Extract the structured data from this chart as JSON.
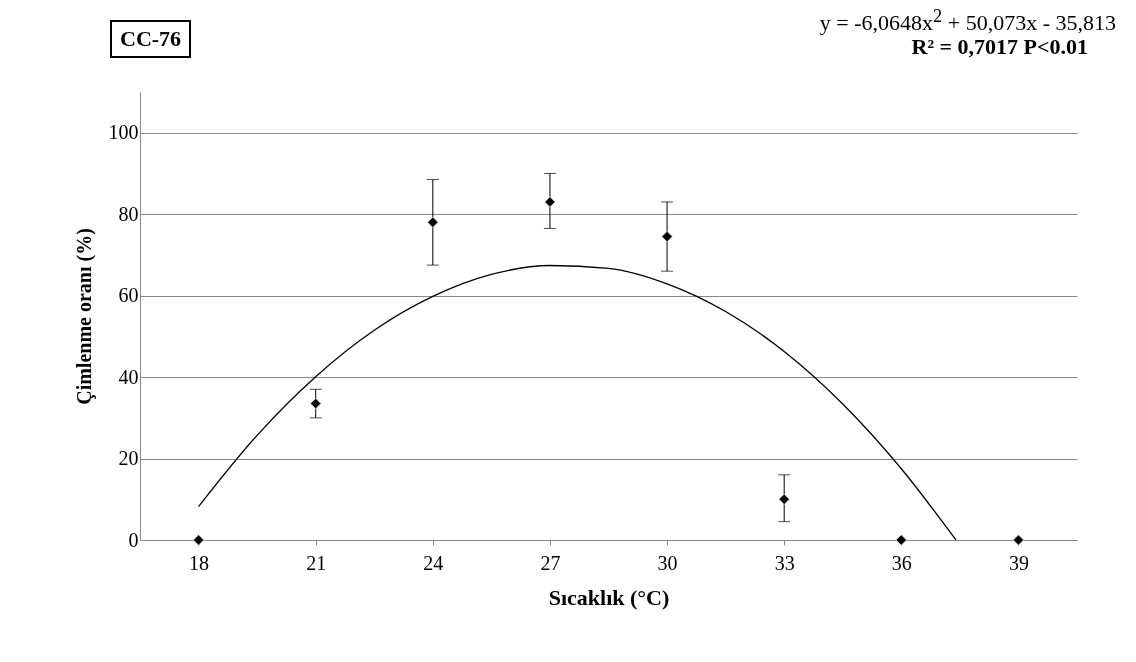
{
  "chart_data": {
    "type": "scatter",
    "xlabel": "Sıcaklık (°C)",
    "ylabel": "Çimlenme oranı (%)",
    "annotations": [
      "CC-76",
      "y = -6,0648x$^{2}$ + 50,073x - 35,813",
      "R² = 0,7017 P<0.01"
    ],
    "x": [
      18,
      21,
      24,
      27,
      30,
      33,
      36,
      39
    ],
    "series": [
      {
        "marker": "diamond",
        "color": "#000000",
        "values": [
          0,
          33.5,
          78,
          83,
          74.5,
          10,
          0,
          0
        ],
        "errors": [
          null,
          [
            30,
            37
          ],
          [
            67.5,
            88.5
          ],
          [
            76.5,
            90
          ],
          [
            66,
            83
          ],
          [
            4.5,
            16
          ],
          null,
          null
        ]
      },
      {
        "type": "line",
        "color": "#000000",
        "x": [
          18,
          19.5,
          21,
          22.5,
          24,
          25.5,
          27,
          28.5,
          30,
          31.5,
          33,
          34.5,
          36,
          37.4
        ],
        "values": [
          8.2,
          25.7,
          40.1,
          51.5,
          59.8,
          65.2,
          67.4,
          66.7,
          62.9,
          56.1,
          46.3,
          33.4,
          17.5,
          0
        ]
      }
    ],
    "xlim": [
      16.5,
      40.5
    ],
    "xticks": [
      18,
      21,
      24,
      27,
      30,
      33,
      36,
      39
    ],
    "ylim": [
      0,
      110
    ],
    "yticks": [
      0,
      20,
      40,
      60,
      80,
      100
    ],
    "grid": "y"
  }
}
